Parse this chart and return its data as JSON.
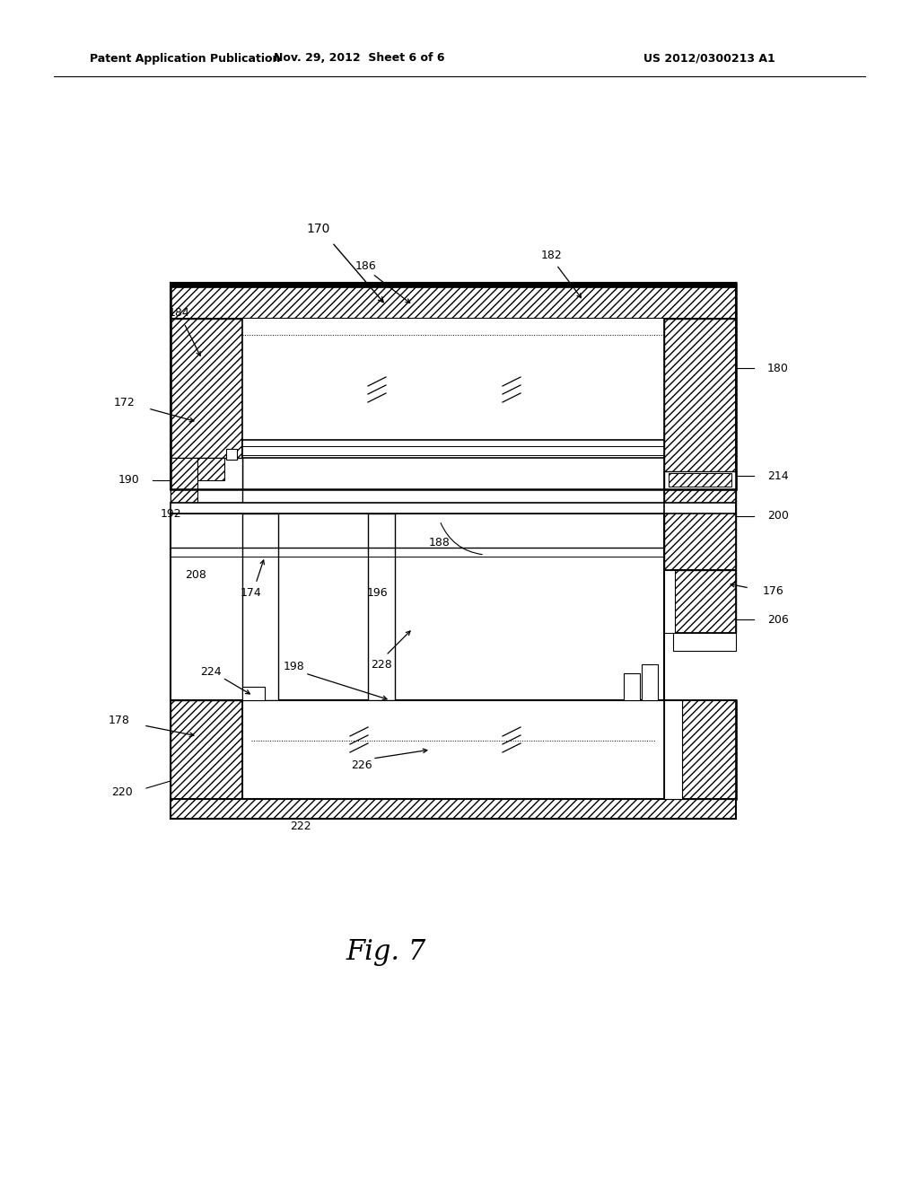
{
  "bg_color": "#ffffff",
  "header_left": "Patent Application Publication",
  "header_mid": "Nov. 29, 2012  Sheet 6 of 6",
  "header_right": "US 2012/0300213 A1",
  "fig_label": "Fig. 7"
}
